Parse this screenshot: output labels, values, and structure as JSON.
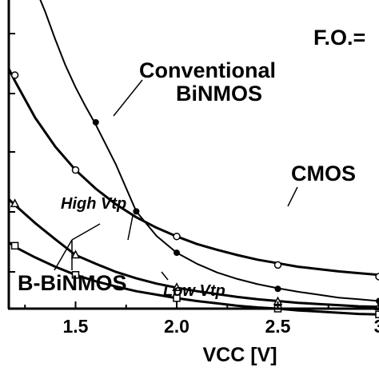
{
  "chart_data": {
    "type": "line",
    "title": "",
    "xlabel": "VCC [V]",
    "ylabel": "",
    "xlim": [
      1.17,
      3.0
    ],
    "ylim": [
      0,
      5.3
    ],
    "x_ticks": [
      {
        "value": 1.5,
        "label": "1.5"
      },
      {
        "value": 2.0,
        "label": "2.0"
      },
      {
        "value": 2.5,
        "label": "2.5"
      },
      {
        "value": 3.0,
        "label": "3"
      }
    ],
    "grid": false,
    "series": [
      {
        "name": "CMOS",
        "marker": "open-circle",
        "line_width": 3,
        "points": [
          [
            1.2,
            4.01
          ],
          [
            1.5,
            2.38
          ],
          [
            2.0,
            1.24
          ],
          [
            2.5,
            0.75
          ],
          [
            3.0,
            0.55
          ]
        ],
        "curve": [
          [
            1.17,
            4.12
          ],
          [
            1.2,
            3.91
          ],
          [
            1.3,
            3.28
          ],
          [
            1.4,
            2.78
          ],
          [
            1.5,
            2.38
          ],
          [
            1.6,
            2.06
          ],
          [
            1.7,
            1.79
          ],
          [
            1.8,
            1.57
          ],
          [
            1.9,
            1.39
          ],
          [
            2.0,
            1.24
          ],
          [
            2.1,
            1.11
          ],
          [
            2.2,
            1.01
          ],
          [
            2.3,
            0.92
          ],
          [
            2.4,
            0.84
          ],
          [
            2.5,
            0.78
          ],
          [
            2.6,
            0.72
          ],
          [
            2.7,
            0.68
          ],
          [
            2.8,
            0.64
          ],
          [
            2.9,
            0.61
          ],
          [
            3.0,
            0.58
          ]
        ]
      },
      {
        "name": "Conventional BiNMOS",
        "marker": "filled-circle",
        "line_width": 2,
        "points": [
          [
            1.6,
            3.2
          ],
          [
            1.8,
            1.67
          ],
          [
            2.0,
            0.96
          ],
          [
            2.5,
            0.34
          ],
          [
            3.0,
            0.13
          ]
        ],
        "curve": [
          [
            1.32,
            5.35
          ],
          [
            1.35,
            5.1
          ],
          [
            1.4,
            4.62
          ],
          [
            1.45,
            4.18
          ],
          [
            1.5,
            3.8
          ],
          [
            1.55,
            3.47
          ],
          [
            1.6,
            3.16
          ],
          [
            1.7,
            2.47
          ],
          [
            1.8,
            1.67
          ],
          [
            1.9,
            1.25
          ],
          [
            2.0,
            0.96
          ],
          [
            2.1,
            0.77
          ],
          [
            2.2,
            0.62
          ],
          [
            2.3,
            0.51
          ],
          [
            2.4,
            0.42
          ],
          [
            2.5,
            0.35
          ],
          [
            2.6,
            0.29
          ],
          [
            2.7,
            0.24
          ],
          [
            2.8,
            0.19
          ],
          [
            2.9,
            0.16
          ],
          [
            3.0,
            0.13
          ]
        ]
      },
      {
        "name": "B-BiNMOS High Vtp",
        "marker": "open-triangle",
        "line_width": 3,
        "points": [
          [
            1.2,
            1.8
          ],
          [
            1.5,
            0.92
          ],
          [
            2.0,
            0.36
          ],
          [
            2.5,
            0.12
          ],
          [
            3.0,
            0.03
          ]
        ],
        "curve": [
          [
            1.17,
            1.88
          ],
          [
            1.2,
            1.78
          ],
          [
            1.3,
            1.47
          ],
          [
            1.4,
            1.19
          ],
          [
            1.5,
            0.92
          ],
          [
            1.6,
            0.77
          ],
          [
            1.7,
            0.63
          ],
          [
            1.8,
            0.52
          ],
          [
            1.9,
            0.43
          ],
          [
            2.0,
            0.36
          ],
          [
            2.1,
            0.3
          ],
          [
            2.2,
            0.25
          ],
          [
            2.3,
            0.2
          ],
          [
            2.4,
            0.16
          ],
          [
            2.5,
            0.13
          ],
          [
            2.6,
            0.1
          ],
          [
            2.7,
            0.08
          ],
          [
            2.8,
            0.06
          ],
          [
            2.9,
            0.04
          ],
          [
            3.0,
            0.03
          ]
        ]
      },
      {
        "name": "B-BiNMOS Low Vtp",
        "marker": "open-square",
        "line_width": 3,
        "points": [
          [
            1.2,
            1.08
          ],
          [
            1.5,
            0.58
          ],
          [
            2.0,
            0.18
          ],
          [
            2.5,
            0.0
          ],
          [
            3.0,
            -0.1
          ]
        ],
        "curve": [
          [
            1.17,
            1.14
          ],
          [
            1.2,
            1.06
          ],
          [
            1.3,
            0.88
          ],
          [
            1.4,
            0.72
          ],
          [
            1.5,
            0.58
          ],
          [
            1.6,
            0.47
          ],
          [
            1.7,
            0.38
          ],
          [
            1.8,
            0.3
          ],
          [
            1.9,
            0.24
          ],
          [
            2.0,
            0.18
          ],
          [
            2.1,
            0.13
          ],
          [
            2.2,
            0.09
          ],
          [
            2.3,
            0.05
          ],
          [
            2.4,
            0.02
          ],
          [
            2.5,
            0.0
          ],
          [
            2.6,
            -0.03
          ],
          [
            2.7,
            -0.05
          ],
          [
            2.8,
            -0.07
          ],
          [
            2.9,
            -0.09
          ],
          [
            3.0,
            -0.1
          ]
        ]
      }
    ],
    "annotations": [
      {
        "text": "F.O.=",
        "style": "big"
      },
      {
        "text": "Conventional",
        "style": "big"
      },
      {
        "text": "BiNMOS",
        "style": "big"
      },
      {
        "text": "CMOS",
        "style": "big"
      },
      {
        "text": "High Vtp",
        "style": "small"
      },
      {
        "text": "B-BiNMOS",
        "style": "big"
      },
      {
        "text": "Low Vtp",
        "style": "small"
      }
    ]
  }
}
